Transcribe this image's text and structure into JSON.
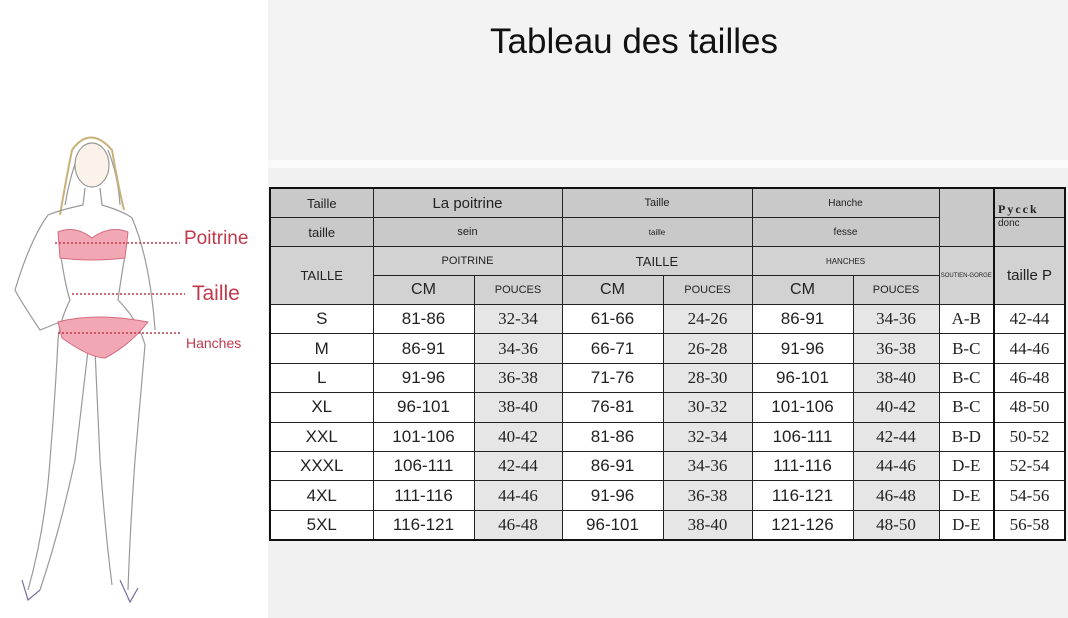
{
  "title": "Tableau des tailles",
  "figure": {
    "labels": [
      "Poitrine",
      "Taille",
      "Hanches"
    ],
    "accent": "#c0394b"
  },
  "table": {
    "header_row1": [
      "Taille",
      "La poitrine",
      "Taille",
      "Hanche",
      "Pycck"
    ],
    "header_row2": [
      "taille",
      "sein",
      "taille",
      "fesse",
      "donc"
    ],
    "header_row3": [
      "TAILLE",
      "POITRINE",
      "TAILLE",
      "HANCHES",
      "SOUTIEN-GORGE",
      "taille P"
    ],
    "header_row4": [
      "CM",
      "POUCES",
      "CM",
      "POUCES",
      "CM",
      "POUCES"
    ],
    "rows": [
      [
        "S",
        "81-86",
        "32-34",
        "61-66",
        "24-26",
        "86-91",
        "34-36",
        "A-B",
        "42-44"
      ],
      [
        "M",
        "86-91",
        "34-36",
        "66-71",
        "26-28",
        "91-96",
        "36-38",
        "B-C",
        "44-46"
      ],
      [
        "L",
        "91-96",
        "36-38",
        "71-76",
        "28-30",
        "96-101",
        "38-40",
        "B-C",
        "46-48"
      ],
      [
        "XL",
        "96-101",
        "38-40",
        "76-81",
        "30-32",
        "101-106",
        "40-42",
        "B-C",
        "48-50"
      ],
      [
        "XXL",
        "101-106",
        "40-42",
        "81-86",
        "32-34",
        "106-111",
        "42-44",
        "B-D",
        "50-52"
      ],
      [
        "XXXL",
        "106-111",
        "42-44",
        "86-91",
        "34-36",
        "111-116",
        "44-46",
        "D-E",
        "52-54"
      ],
      [
        "4XL",
        "111-116",
        "44-46",
        "91-96",
        "36-38",
        "116-121",
        "46-48",
        "D-E",
        "54-56"
      ],
      [
        "5XL",
        "116-121",
        "46-48",
        "96-101",
        "38-40",
        "121-126",
        "48-50",
        "D-E",
        "56-58"
      ]
    ]
  }
}
